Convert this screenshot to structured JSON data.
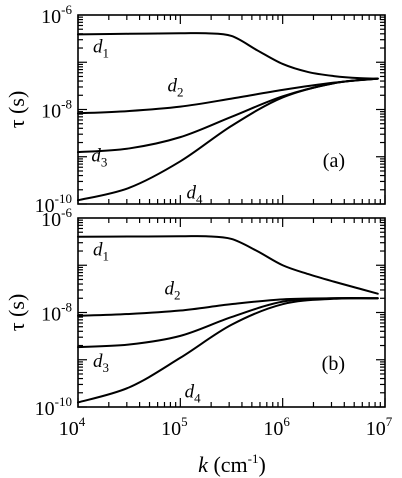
{
  "chart_data": [
    {
      "type": "line",
      "panel_label": "(a)",
      "xscale": "log",
      "yscale": "log",
      "xlim": [
        10000,
        10000000
      ],
      "ylim": [
        1e-10,
        1e-06
      ],
      "ylabel": "τ (s)",
      "y_ticks": [
        {
          "base": "10",
          "exp": "-6",
          "value": 1e-06
        },
        {
          "base": "10",
          "exp": "-8",
          "value": 1e-08
        },
        {
          "base": "10",
          "exp": "-10",
          "value": 1e-10
        }
      ],
      "series": [
        {
          "name_base": "d",
          "name_sub": "1",
          "label_at": {
            "x": 14000,
            "y": 1.6e-07
          },
          "x": [
            10000,
            31623,
            100000,
            177828,
            316228,
            562341,
            1000000,
            1778279,
            3162278,
            5623413,
            8500000
          ],
          "y": [
            3.9e-07,
            4e-07,
            4.1e-07,
            4.1e-07,
            3.6e-07,
            1.8e-07,
            9.2e-08,
            6.2e-08,
            5.1e-08,
            4.6e-08,
            4.5e-08
          ]
        },
        {
          "name_base": "d",
          "name_sub": "2",
          "label_at": {
            "x": 75000,
            "y": 2.4e-08
          },
          "x": [
            10000,
            31623,
            100000,
            316228,
            1000000,
            3162278,
            8500000
          ],
          "y": [
            8.3e-09,
            9.3e-09,
            1.15e-08,
            1.7e-08,
            2.6e-08,
            3.7e-08,
            4.5e-08
          ]
        },
        {
          "name_base": "d",
          "name_sub": "3",
          "label_at": {
            "x": 13500,
            "y": 8e-10
          },
          "x": [
            10000,
            31623,
            100000,
            316228,
            1000000,
            3162278,
            8500000
          ],
          "y": [
            1.25e-09,
            1.5e-09,
            2.6e-09,
            7e-09,
            1.9e-08,
            3.6e-08,
            4.5e-08
          ]
        },
        {
          "name_base": "d",
          "name_sub": "4",
          "label_at": {
            "x": 115000,
            "y": 1.3e-10
          },
          "x": [
            10000,
            31623,
            100000,
            316228,
            1000000,
            3162278,
            8500000
          ],
          "y": [
            1.2e-10,
            2.2e-10,
            8e-10,
            4.5e-09,
            1.8e-08,
            3.6e-08,
            4.5e-08
          ]
        }
      ]
    },
    {
      "type": "line",
      "panel_label": "(b)",
      "xscale": "log",
      "yscale": "log",
      "xlim": [
        10000,
        10000000
      ],
      "ylim": [
        1e-10,
        1e-06
      ],
      "xlabel_base": "k",
      "xlabel_unit": "(cm",
      "xlabel_unit_exp": "-1",
      "xlabel_close": ")",
      "ylabel": "τ (s)",
      "x_ticks": [
        {
          "base": "10",
          "exp": "4",
          "value": 10000
        },
        {
          "base": "10",
          "exp": "5",
          "value": 100000
        },
        {
          "base": "10",
          "exp": "6",
          "value": 1000000
        },
        {
          "base": "10",
          "exp": "7",
          "value": 10000000
        }
      ],
      "y_ticks": [
        {
          "base": "10",
          "exp": "-6",
          "value": 1e-06
        },
        {
          "base": "10",
          "exp": "-8",
          "value": 1e-08
        },
        {
          "base": "10",
          "exp": "-10",
          "value": 1e-10
        }
      ],
      "series": [
        {
          "name_base": "d",
          "name_sub": "1",
          "label_at": {
            "x": 14000,
            "y": 1.6e-07
          },
          "x": [
            10000,
            31623,
            100000,
            177828,
            316228,
            562341,
            1000000,
            1778279,
            3162278,
            5623413,
            8500000
          ],
          "y": [
            4e-07,
            4.05e-07,
            4.1e-07,
            4.1e-07,
            3.6e-07,
            2e-07,
            1e-07,
            6.5e-08,
            4.5e-08,
            3.2e-08,
            2.5e-08
          ]
        },
        {
          "name_base": "d",
          "name_sub": "2",
          "label_at": {
            "x": 70000,
            "y": 2.4e-08
          },
          "x": [
            10000,
            31623,
            100000,
            316228,
            1000000,
            3162278,
            8500000
          ],
          "y": [
            8.5e-09,
            9.3e-09,
            1.1e-08,
            1.5e-08,
            1.9e-08,
            2e-08,
            2e-08
          ]
        },
        {
          "name_base": "d",
          "name_sub": "3",
          "label_at": {
            "x": 14000,
            "y": 7e-10
          },
          "x": [
            10000,
            31623,
            100000,
            316228,
            1000000,
            3162278,
            8500000
          ],
          "y": [
            1.85e-09,
            2.1e-09,
            3.2e-09,
            8e-09,
            1.7e-08,
            2e-08,
            2e-08
          ]
        },
        {
          "name_base": "d",
          "name_sub": "4",
          "label_at": {
            "x": 110000,
            "y": 1.6e-10
          },
          "x": [
            10000,
            31623,
            100000,
            316228,
            1000000,
            3162278,
            8500000
          ],
          "y": [
            1.25e-10,
            2.6e-10,
            1.1e-09,
            5.5e-09,
            1.5e-08,
            1.95e-08,
            2e-08
          ]
        }
      ]
    }
  ]
}
